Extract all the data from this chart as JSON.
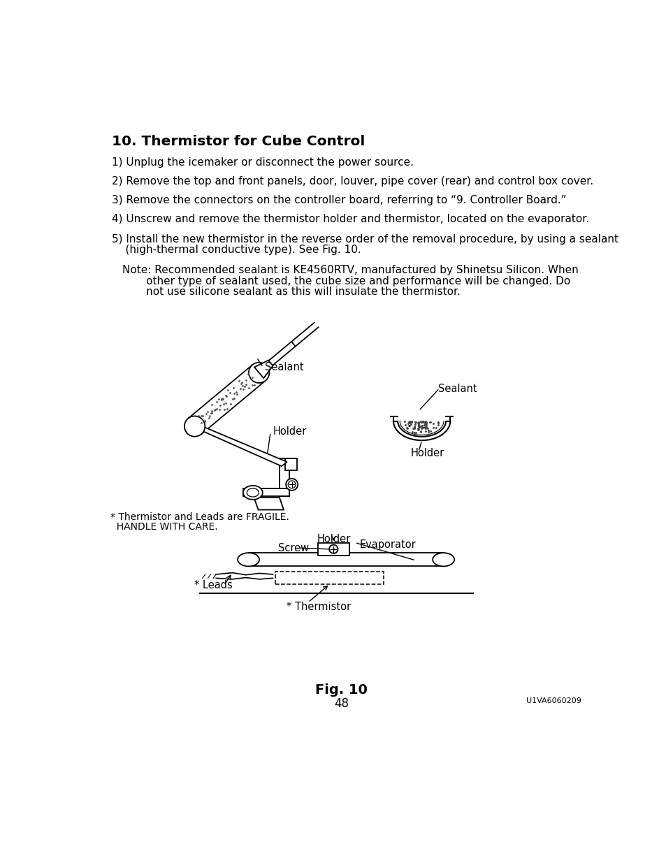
{
  "title": "10. Thermistor for Cube Control",
  "step1": "1) Unplug the icemaker or disconnect the power source.",
  "step2": "2) Remove the top and front panels, door, louver, pipe cover (rear) and control box cover.",
  "step3": "3) Remove the connectors on the controller board, referring to “9. Controller Board.”",
  "step4": "4) Unscrew and remove the thermistor holder and thermistor, located on the evaporator.",
  "step5a": "5) Install the new thermistor in the reverse order of the removal procedure, by using a sealant",
  "step5b": "    (high-thermal conductive type). See Fig. 10.",
  "note_line1": "Note: Recommended sealant is KE4560RTV, manufactured by Shinetsu Silicon. When",
  "note_line2": "       other type of sealant used, the cube size and performance will be changed. Do",
  "note_line3": "       not use silicone sealant as this will insulate the thermistor.",
  "fig_caption": "Fig. 10",
  "page_number": "48",
  "page_code": "U1VA6060209",
  "fragile_line1": "* Thermistor and Leads are FRAGILE.",
  "fragile_line2": "  HANDLE WITH CARE.",
  "label_sealant": "Sealant",
  "label_holder": "Holder",
  "label_screw": "Screw",
  "label_evaporator": "Evaporator",
  "label_leads": "* Leads",
  "label_thermistor": "* Thermistor",
  "bg_color": "#ffffff",
  "text_color": "#000000"
}
